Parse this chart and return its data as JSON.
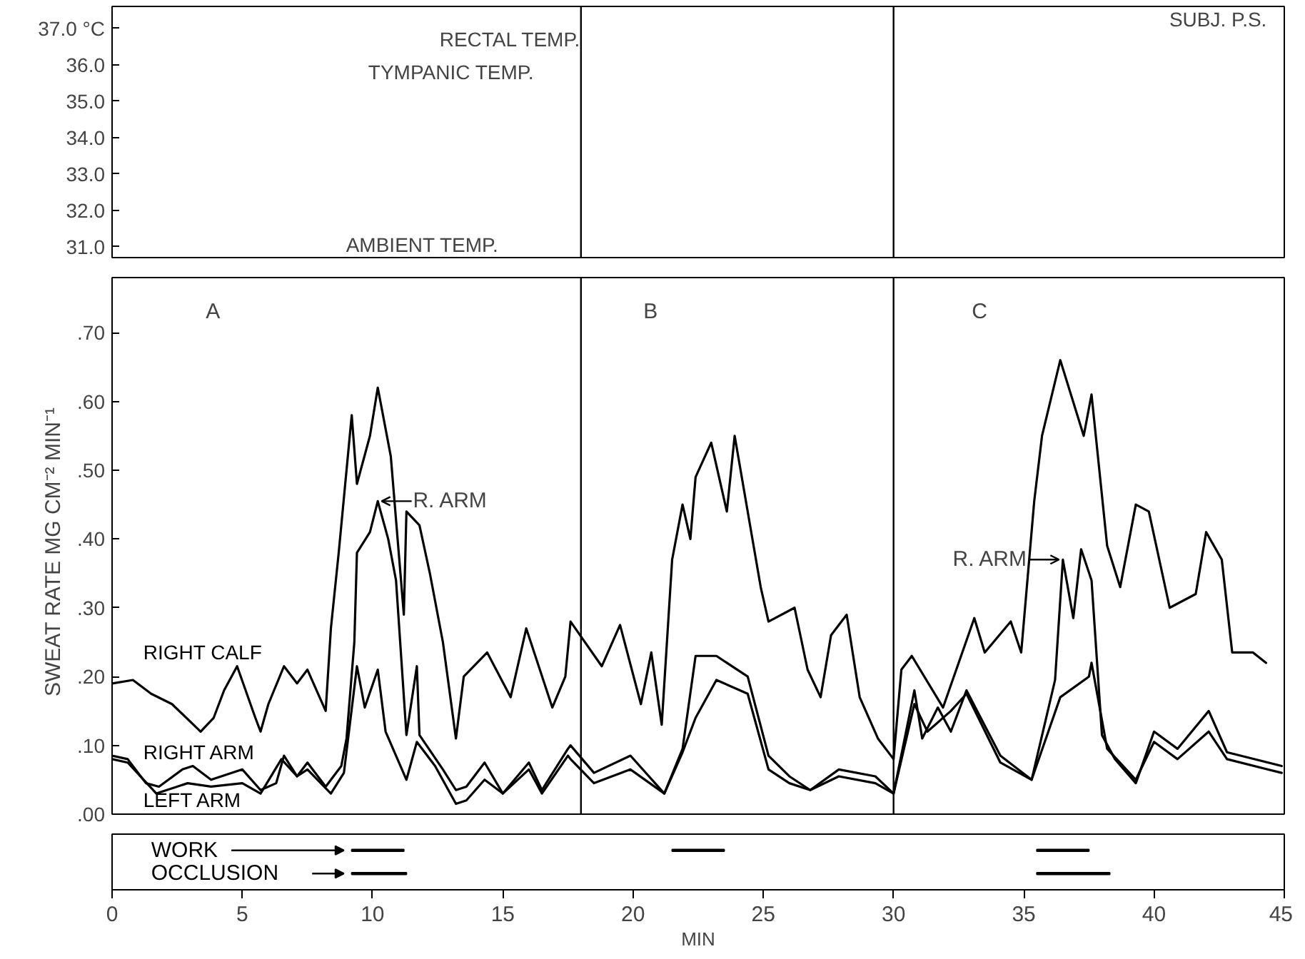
{
  "chart_data": [
    {
      "type": "line",
      "xlim": [
        0,
        45
      ],
      "ylim": [
        30.7,
        37.6
      ],
      "yticks": [
        {
          "value": 31,
          "label": "31.0"
        },
        {
          "value": 32,
          "label": "32.0"
        },
        {
          "value": 33,
          "label": "33.0"
        },
        {
          "value": 34,
          "label": "34.0"
        },
        {
          "value": 35,
          "label": "35.0"
        },
        {
          "value": 36,
          "label": "36.0"
        },
        {
          "value": 37,
          "label": "37.0 °C"
        }
      ],
      "tick_labels": "y",
      "ref_lines": [
        {
          "axis": "x",
          "value": 18,
          "color": "#000000"
        },
        {
          "axis": "x",
          "value": 30,
          "color": "#000000"
        }
      ],
      "annotations": [
        "SUBJ. P.S.",
        "RECTAL TEMP.",
        "TYMPANIC TEMP.",
        "AMBIENT TEMP."
      ]
    },
    {
      "type": "line",
      "xlim": [
        0,
        45
      ],
      "ylim": [
        0,
        0.78
      ],
      "legend": "left",
      "yticks": [
        {
          "value": 0,
          "label": ".00"
        },
        {
          "value": 0.1,
          "label": ".10"
        },
        {
          "value": 0.2,
          "label": ".20"
        },
        {
          "value": 0.3,
          "label": ".30"
        },
        {
          "value": 0.4,
          "label": ".40"
        },
        {
          "value": 0.5,
          "label": ".50"
        },
        {
          "value": 0.6,
          "label": ".60"
        },
        {
          "value": 0.7,
          "label": ".70"
        }
      ],
      "ylabel": "SWEAT RATE   MG CM⁻² MIN⁻¹",
      "tick_labels": "y",
      "marker": "none",
      "line_style": "solid",
      "series": [
        {
          "name": "RIGHT CALF",
          "color": "#000000",
          "x": [
            0,
            0.8,
            1.5,
            2.3,
            3.4,
            3.9,
            4.3,
            4.8,
            5.5,
            5.7,
            6.0,
            6.6,
            7.1,
            7.5,
            8.2,
            8.4,
            8.7,
            9.2,
            9.4,
            9.9,
            10.2,
            10.7,
            11.2,
            11.3,
            11.8,
            12.2,
            12.7,
            13.2,
            13.5,
            14.4,
            15.3,
            15.9,
            16.9,
            17.4,
            17.6,
            18.8,
            19.5,
            20.3,
            20.7,
            21.1,
            21.5,
            21.9,
            22.2,
            22.4,
            23.0,
            23.6,
            23.9,
            24.9,
            25.2,
            26.2,
            26.7,
            27.2,
            27.6,
            28.2,
            28.7,
            29.4,
            30.0,
            30.3,
            30.7,
            31.9,
            33.1,
            33.5,
            34.5,
            34.9,
            35.4,
            35.7,
            36.4,
            37.3,
            37.6,
            38.2,
            38.7,
            39.3,
            39.8,
            40.6,
            41.6,
            42.0,
            42.6,
            43.0,
            43.8,
            44.3
          ],
          "values": [
            0.19,
            0.195,
            0.175,
            0.16,
            0.12,
            0.14,
            0.18,
            0.215,
            0.14,
            0.12,
            0.16,
            0.215,
            0.19,
            0.21,
            0.15,
            0.27,
            0.38,
            0.58,
            0.48,
            0.55,
            0.62,
            0.52,
            0.29,
            0.44,
            0.42,
            0.35,
            0.25,
            0.11,
            0.2,
            0.235,
            0.17,
            0.27,
            0.155,
            0.2,
            0.28,
            0.215,
            0.275,
            0.16,
            0.235,
            0.13,
            0.37,
            0.45,
            0.4,
            0.49,
            0.54,
            0.44,
            0.55,
            0.33,
            0.28,
            0.3,
            0.21,
            0.17,
            0.26,
            0.29,
            0.17,
            0.11,
            0.08,
            0.21,
            0.23,
            0.155,
            0.285,
            0.235,
            0.28,
            0.235,
            0.455,
            0.55,
            0.66,
            0.55,
            0.61,
            0.39,
            0.33,
            0.45,
            0.44,
            0.3,
            0.32,
            0.41,
            0.37,
            0.235,
            0.235,
            0.22
          ]
        },
        {
          "name": "RIGHT ARM",
          "color": "#000000",
          "x": [
            0,
            0.6,
            1.3,
            1.8,
            2.7,
            3.1,
            3.8,
            5.0,
            5.7,
            6.3,
            6.6,
            7.1,
            7.5,
            8.2,
            8.8,
            9.0,
            9.3,
            9.4,
            9.9,
            10.2,
            10.6,
            10.9,
            11.3,
            11.7,
            11.8,
            12.7,
            13.2,
            13.6,
            14.3,
            15.0,
            16.0,
            16.5,
            17.5,
            17.6,
            18.5,
            19.9,
            21.2,
            21.9,
            22.4,
            23.2,
            24.4,
            25.2,
            26.0,
            26.8,
            27.9,
            29.3,
            30.0,
            30.8,
            31.1,
            31.7,
            32.2,
            32.8,
            34.1,
            35.3,
            36.2,
            36.5,
            36.9,
            37.2,
            37.6,
            38.0,
            38.5,
            39.3,
            40.0,
            40.9,
            42.1,
            42.8,
            44.9
          ],
          "values": [
            0.085,
            0.08,
            0.045,
            0.04,
            0.065,
            0.07,
            0.05,
            0.065,
            0.035,
            0.045,
            0.085,
            0.055,
            0.075,
            0.04,
            0.07,
            0.11,
            0.25,
            0.38,
            0.41,
            0.455,
            0.4,
            0.34,
            0.115,
            0.215,
            0.115,
            0.065,
            0.035,
            0.04,
            0.075,
            0.03,
            0.075,
            0.035,
            0.095,
            0.1,
            0.06,
            0.085,
            0.03,
            0.095,
            0.23,
            0.23,
            0.2,
            0.085,
            0.055,
            0.035,
            0.065,
            0.055,
            0.03,
            0.18,
            0.11,
            0.155,
            0.12,
            0.18,
            0.085,
            0.05,
            0.195,
            0.37,
            0.285,
            0.385,
            0.34,
            0.115,
            0.08,
            0.045,
            0.12,
            0.095,
            0.15,
            0.09,
            0.07
          ]
        },
        {
          "name": "LEFT ARM",
          "color": "#000000",
          "x": [
            0,
            0.6,
            1.7,
            2.9,
            3.8,
            5.0,
            5.7,
            6.5,
            7.1,
            7.5,
            8.4,
            8.9,
            9.4,
            9.7,
            10.2,
            10.5,
            11.3,
            11.7,
            12.4,
            13.2,
            13.6,
            14.3,
            15.0,
            16.0,
            16.5,
            17.5,
            17.6,
            18.5,
            19.9,
            21.2,
            21.9,
            22.4,
            23.2,
            24.4,
            25.2,
            26.0,
            26.8,
            27.9,
            29.3,
            30.0,
            30.8,
            31.3,
            32.2,
            32.8,
            34.1,
            35.3,
            36.4,
            37.5,
            37.6,
            38.2,
            39.3,
            40.0,
            40.9,
            42.1,
            42.8,
            44.9
          ],
          "values": [
            0.08,
            0.075,
            0.03,
            0.045,
            0.04,
            0.045,
            0.03,
            0.08,
            0.055,
            0.065,
            0.03,
            0.06,
            0.215,
            0.155,
            0.21,
            0.12,
            0.05,
            0.105,
            0.07,
            0.015,
            0.02,
            0.05,
            0.03,
            0.065,
            0.03,
            0.085,
            0.08,
            0.045,
            0.065,
            0.03,
            0.09,
            0.14,
            0.195,
            0.175,
            0.065,
            0.045,
            0.035,
            0.055,
            0.045,
            0.03,
            0.16,
            0.12,
            0.15,
            0.175,
            0.075,
            0.05,
            0.17,
            0.2,
            0.22,
            0.095,
            0.05,
            0.105,
            0.08,
            0.12,
            0.08,
            0.06
          ]
        }
      ],
      "ref_lines": [
        {
          "axis": "x",
          "value": 18,
          "color": "#000000"
        },
        {
          "axis": "x",
          "value": 30,
          "color": "#000000"
        }
      ],
      "annotations": [
        "A",
        "B",
        "C",
        {
          "text": "R. ARM",
          "x": 10.2,
          "y": 0.455
        },
        {
          "text": "R. ARM",
          "x": 36.5,
          "y": 0.37
        }
      ]
    },
    {
      "type": "bar",
      "orientation": "horizontal",
      "categories": [
        "WORK",
        "OCCLUSION"
      ],
      "xlim": [
        0,
        45
      ],
      "xticks": [
        0,
        5,
        10,
        15,
        20,
        25,
        30,
        35,
        40,
        45
      ],
      "xlabel": "MIN",
      "series": [
        {
          "color": "#000000",
          "base": [
            9.2,
            9.2
          ],
          "values": [
            2.0,
            2.1
          ]
        },
        {
          "color": "#000000",
          "base": [
            21.5,
            null
          ],
          "values": [
            2.0,
            null
          ]
        },
        {
          "color": "#000000",
          "base": [
            35.5,
            35.5
          ],
          "values": [
            2.0,
            2.8
          ]
        }
      ]
    }
  ]
}
